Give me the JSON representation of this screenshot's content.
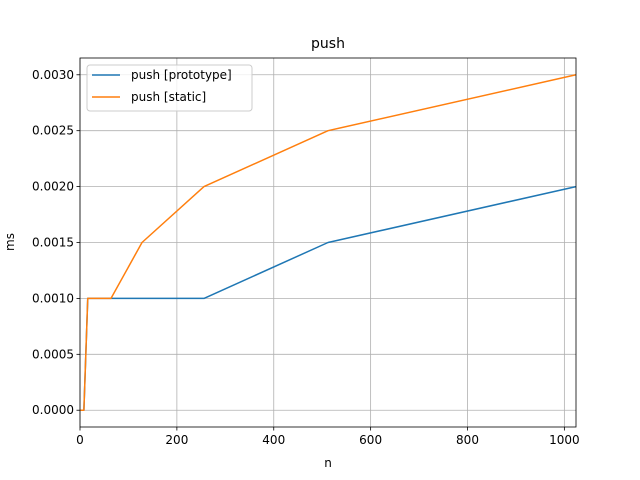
{
  "chart_data": {
    "type": "line",
    "title": "push",
    "xlabel": "n",
    "ylabel": "ms",
    "xlim": [
      0,
      1024
    ],
    "ylim": [
      -0.00015,
      0.00315
    ],
    "xticks": [
      0,
      200,
      400,
      600,
      800,
      1000
    ],
    "xtick_labels": [
      "0",
      "200",
      "400",
      "600",
      "800",
      "1000"
    ],
    "yticks": [
      0,
      0.0005,
      0.001,
      0.0015,
      0.002,
      0.0025,
      0.003
    ],
    "ytick_labels": [
      "0.0000",
      "0.0005",
      "0.0010",
      "0.0015",
      "0.0020",
      "0.0025",
      "0.0030"
    ],
    "grid": true,
    "legend": "upper-left",
    "x": [
      1,
      2,
      4,
      8,
      16,
      32,
      64,
      128,
      256,
      512,
      1024
    ],
    "series": [
      {
        "name": "push [prototype]",
        "color": "#1f77b4",
        "values": [
          0,
          0,
          0,
          0,
          0.001,
          0.001,
          0.001,
          0.001,
          0.001,
          0.0015,
          0.002
        ]
      },
      {
        "name": "push [static]",
        "color": "#ff7f0e",
        "values": [
          0,
          0,
          0,
          0,
          0.001,
          0.001,
          0.001,
          0.0015,
          0.002,
          0.0025,
          0.003
        ]
      }
    ]
  }
}
